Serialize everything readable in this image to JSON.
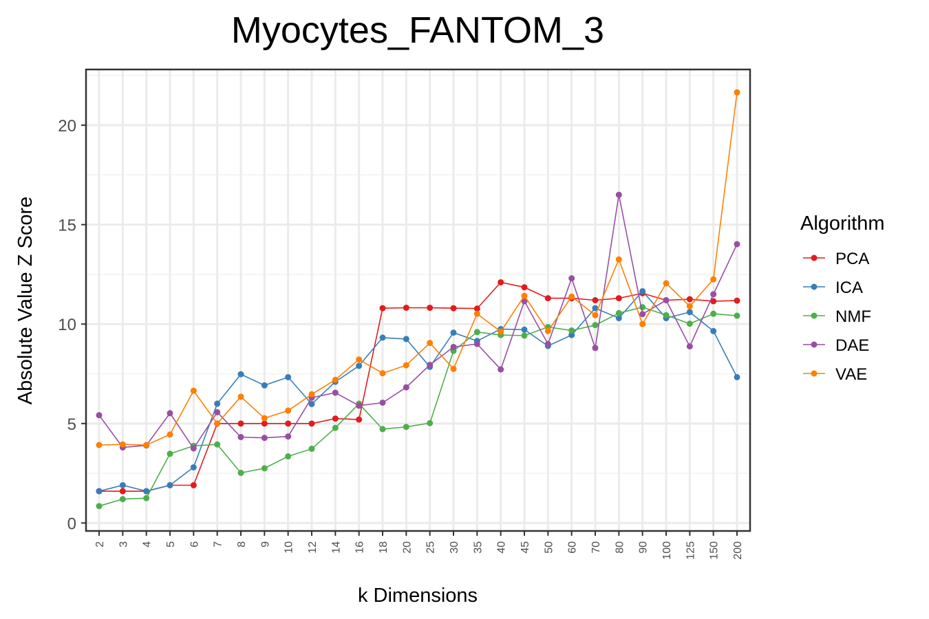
{
  "chart_data": {
    "type": "line",
    "title": "Myocytes_FANTOM_3",
    "xlabel": "k Dimensions",
    "ylabel": "Absolute Value Z Score",
    "categories": [
      "2",
      "3",
      "4",
      "5",
      "6",
      "7",
      "8",
      "9",
      "10",
      "12",
      "14",
      "16",
      "18",
      "20",
      "25",
      "30",
      "35",
      "40",
      "45",
      "50",
      "60",
      "70",
      "80",
      "90",
      "100",
      "125",
      "150",
      "200"
    ],
    "y_ticks": [
      "0",
      "5",
      "10",
      "15",
      "20"
    ],
    "ylim": [
      -0.4,
      22.8
    ],
    "grid": true,
    "legend_title": "Algorithm",
    "legend_position": "right",
    "series": [
      {
        "name": "PCA",
        "color": "#E41A1C",
        "values": [
          1.6,
          1.6,
          1.6,
          1.9,
          1.9,
          5.0,
          5.0,
          5.0,
          5.0,
          5.0,
          5.25,
          5.2,
          10.8,
          10.82,
          10.82,
          10.8,
          10.78,
          12.1,
          11.85,
          11.3,
          11.3,
          11.2,
          11.3,
          11.55,
          11.2,
          11.25,
          11.15,
          11.18
        ]
      },
      {
        "name": "ICA",
        "color": "#377EB8",
        "values": [
          1.6,
          1.9,
          1.6,
          1.9,
          2.8,
          6.0,
          7.48,
          6.92,
          7.33,
          5.98,
          7.1,
          7.9,
          9.32,
          9.25,
          7.85,
          9.57,
          9.15,
          9.75,
          9.72,
          8.9,
          9.45,
          10.8,
          10.3,
          11.65,
          10.3,
          10.6,
          9.65,
          7.33
        ]
      },
      {
        "name": "NMF",
        "color": "#4DAF4A",
        "values": [
          0.85,
          1.2,
          1.25,
          3.48,
          3.88,
          3.95,
          2.52,
          2.75,
          3.35,
          3.73,
          4.78,
          6.0,
          4.72,
          4.83,
          5.02,
          8.65,
          9.6,
          9.45,
          9.42,
          9.85,
          9.68,
          9.95,
          10.55,
          10.85,
          10.45,
          10.02,
          10.52,
          10.42
        ]
      },
      {
        "name": "DAE",
        "color": "#984EA3",
        "values": [
          5.42,
          3.8,
          3.9,
          5.52,
          3.75,
          5.57,
          4.32,
          4.28,
          4.35,
          6.3,
          6.55,
          5.9,
          6.05,
          6.82,
          7.95,
          8.85,
          9.0,
          7.72,
          11.15,
          9.0,
          12.3,
          8.8,
          16.5,
          10.5,
          11.2,
          8.88,
          11.5,
          14.02
        ]
      },
      {
        "name": "VAE",
        "color": "#FF7F00",
        "values": [
          3.92,
          3.95,
          3.92,
          4.45,
          6.65,
          5.0,
          6.35,
          5.27,
          5.65,
          6.47,
          7.2,
          8.22,
          7.53,
          7.93,
          9.05,
          7.75,
          10.52,
          9.62,
          11.42,
          9.65,
          11.38,
          10.45,
          13.25,
          10.0,
          12.05,
          10.9,
          12.25,
          21.65
        ]
      }
    ]
  }
}
